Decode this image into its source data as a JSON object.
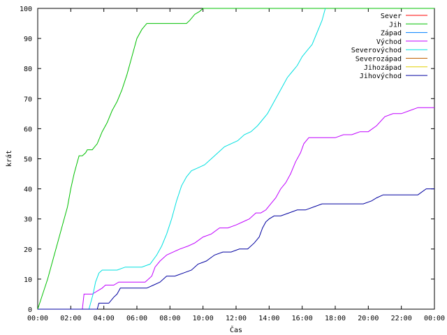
{
  "chart_data": {
    "type": "line",
    "xlabel": "Čas",
    "ylabel": "krát",
    "xlim": [
      0,
      24
    ],
    "ylim": [
      0,
      100
    ],
    "x_ticks": [
      "00:00",
      "02:00",
      "04:00",
      "06:00",
      "08:00",
      "10:00",
      "12:00",
      "14:00",
      "16:00",
      "18:00",
      "20:00",
      "22:00",
      "00:00"
    ],
    "y_ticks": [
      0,
      10,
      20,
      30,
      40,
      50,
      60,
      70,
      80,
      90,
      100
    ],
    "grid": false,
    "legend_position": "top-right",
    "series": [
      {
        "name": "Sever",
        "color": "#ff0000",
        "x": [],
        "y": []
      },
      {
        "name": "Jih",
        "color": "#00c000",
        "x": [
          0,
          0.3,
          0.6,
          0.9,
          1.2,
          1.5,
          1.8,
          2.0,
          2.2,
          2.35,
          2.5,
          2.7,
          2.9,
          3.0,
          3.2,
          3.3,
          3.6,
          3.9,
          4.2,
          4.5,
          4.8,
          5.1,
          5.4,
          5.7,
          6.0,
          6.3,
          6.6,
          6.9,
          7.5,
          8.0,
          8.5,
          9.0,
          9.2,
          9.5,
          9.8,
          10.0,
          24
        ],
        "y": [
          0,
          5,
          10,
          16,
          22,
          28,
          34,
          40,
          45,
          48,
          51,
          51,
          52,
          53,
          53,
          53,
          55,
          59,
          62,
          66,
          69,
          73,
          78,
          84,
          90,
          93,
          95,
          95,
          95,
          95,
          95,
          95,
          96,
          98,
          99,
          100,
          100
        ]
      },
      {
        "name": "Západ",
        "color": "#0080ff",
        "x": [],
        "y": []
      },
      {
        "name": "Východ",
        "color": "#c000ff",
        "x": [
          0,
          2.7,
          2.8,
          3.0,
          3.3,
          3.6,
          3.9,
          4.1,
          4.3,
          4.6,
          4.9,
          5.1,
          5.5,
          6.0,
          6.5,
          6.9,
          7.1,
          7.4,
          7.8,
          8.2,
          8.6,
          9.1,
          9.5,
          10.0,
          10.5,
          11.0,
          11.5,
          12.0,
          12.4,
          12.8,
          13.2,
          13.5,
          13.8,
          14.1,
          14.4,
          14.7,
          15.0,
          15.3,
          15.6,
          15.9,
          16.1,
          16.4,
          16.8,
          17.2,
          17.6,
          18.0,
          18.5,
          19.0,
          19.5,
          20.0,
          20.5,
          21.0,
          21.5,
          22.0,
          22.5,
          23.0,
          23.5,
          24.0
        ],
        "y": [
          0,
          0,
          5,
          5,
          5,
          6,
          7,
          8,
          8,
          8,
          9,
          9,
          9,
          9,
          9,
          11,
          14,
          16,
          18,
          19,
          20,
          21,
          22,
          24,
          25,
          27,
          27,
          28,
          29,
          30,
          32,
          32,
          33,
          35,
          37,
          40,
          42,
          45,
          49,
          52,
          55,
          57,
          57,
          57,
          57,
          57,
          58,
          58,
          59,
          59,
          61,
          64,
          65,
          65,
          66,
          67,
          67,
          67
        ]
      },
      {
        "name": "Severovýchod",
        "color": "#00e0e0",
        "x": [
          0,
          3.1,
          3.2,
          3.35,
          3.5,
          3.7,
          3.9,
          4.3,
          4.8,
          5.3,
          5.8,
          6.3,
          6.8,
          7.2,
          7.5,
          7.8,
          8.1,
          8.4,
          8.7,
          9.0,
          9.3,
          9.7,
          10.1,
          10.5,
          10.9,
          11.3,
          11.7,
          12.1,
          12.5,
          12.9,
          13.3,
          13.6,
          13.9,
          14.2,
          14.5,
          14.8,
          15.1,
          15.4,
          15.7,
          16.0,
          16.3,
          16.6,
          16.9,
          17.2,
          17.4
        ],
        "y": [
          0,
          0,
          2,
          5,
          9,
          12,
          13,
          13,
          13,
          14,
          14,
          14,
          15,
          18,
          21,
          25,
          30,
          36,
          41,
          44,
          46,
          47,
          48,
          50,
          52,
          54,
          55,
          56,
          58,
          59,
          61,
          63,
          65,
          68,
          71,
          74,
          77,
          79,
          81,
          84,
          86,
          88,
          92,
          96,
          100
        ]
      },
      {
        "name": "Severozápad",
        "color": "#c06000",
        "x": [],
        "y": []
      },
      {
        "name": "Jihozápad",
        "color": "#e0d000",
        "x": [],
        "y": []
      },
      {
        "name": "Jihovýchod",
        "color": "#0000a0",
        "x": [
          0,
          3.6,
          3.7,
          4.3,
          4.6,
          4.8,
          5.0,
          5.4,
          6.0,
          6.6,
          7.0,
          7.4,
          7.8,
          8.3,
          8.8,
          9.3,
          9.7,
          10.2,
          10.7,
          11.2,
          11.7,
          12.2,
          12.7,
          13.1,
          13.4,
          13.6,
          13.8,
          14.0,
          14.3,
          14.7,
          15.2,
          15.7,
          16.2,
          16.7,
          17.2,
          17.7,
          18.2,
          18.7,
          19.2,
          19.7,
          20.2,
          20.5,
          20.9,
          21.5,
          22.0,
          22.5,
          23.0,
          23.5,
          24.0
        ],
        "y": [
          0,
          0,
          2,
          2,
          4,
          5,
          7,
          7,
          7,
          7,
          8,
          9,
          11,
          11,
          12,
          13,
          15,
          16,
          18,
          19,
          19,
          20,
          20,
          22,
          24,
          27,
          29,
          30,
          31,
          31,
          32,
          33,
          33,
          34,
          35,
          35,
          35,
          35,
          35,
          35,
          36,
          37,
          38,
          38,
          38,
          38,
          38,
          40,
          40
        ]
      }
    ]
  }
}
